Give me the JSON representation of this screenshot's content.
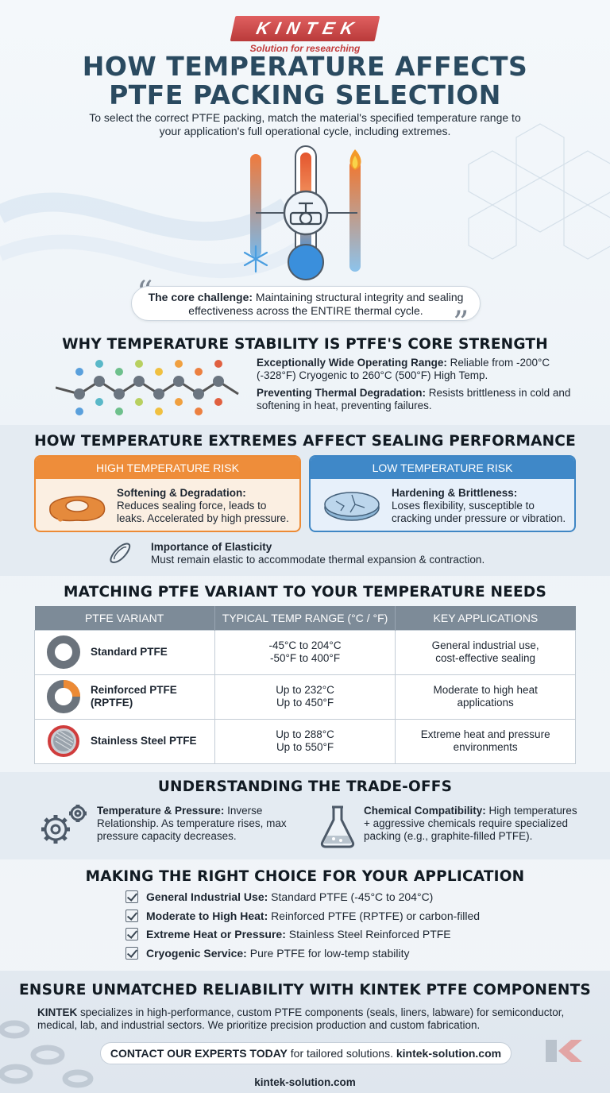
{
  "brand": {
    "logo": "KINTEK",
    "tagline": "Solution for researching"
  },
  "header": {
    "title_line1": "HOW TEMPERATURE AFFECTS",
    "title_line2": "PTFE PACKING SELECTION",
    "subtitle": "To select the correct PTFE packing, match the material's specified temperature range to your application's full operational cycle, including extremes."
  },
  "quote": {
    "label": "The core challenge:",
    "text": " Maintaining structural integrity and sealing effectiveness across the ENTIRE thermal cycle."
  },
  "stability": {
    "title": "WHY TEMPERATURE STABILITY IS PTFE'S CORE STRENGTH",
    "point1_label": "Exceptionally Wide Operating Range:",
    "point1_text": " Reliable from -200°C (-328°F) Cryogenic to 260°C (500°F) High Temp.",
    "point2_label": "Preventing Thermal Degradation:",
    "point2_text": " Resists brittleness in cold and softening in heat, preventing failures."
  },
  "extremes": {
    "title": "HOW TEMPERATURE EXTREMES AFFECT SEALING PERFORMANCE",
    "high": {
      "header": "HIGH TEMPERATURE RISK",
      "label": "Softening & Degradation:",
      "text": "Reduces sealing force, leads to leaks. Accelerated by high pressure."
    },
    "low": {
      "header": "LOW TEMPERATURE RISK",
      "label": "Hardening & Brittleness:",
      "text": "Loses flexibility, susceptible to cracking under pressure or vibration."
    },
    "elasticity_label": "Importance of Elasticity",
    "elasticity_text": "Must remain elastic to accommodate thermal expansion & contraction."
  },
  "variants": {
    "title": "MATCHING PTFE VARIANT TO YOUR TEMPERATURE NEEDS",
    "columns": [
      "PTFE VARIANT",
      "TYPICAL TEMP RANGE (°C / °F)",
      "KEY APPLICATIONS"
    ],
    "rows": [
      {
        "name": "Standard PTFE",
        "range_c": "-45°C to 204°C",
        "range_f": "-50°F to 400°F",
        "app1": "General industrial use,",
        "app2": "cost-effective sealing"
      },
      {
        "name": "Reinforced PTFE (RPTFE)",
        "range_c": "Up to 232°C",
        "range_f": "Up to 450°F",
        "app1": "Moderate to high heat",
        "app2": "applications"
      },
      {
        "name": "Stainless Steel PTFE",
        "range_c": "Up to 288°C",
        "range_f": "Up to 550°F",
        "app1": "Extreme heat and pressure",
        "app2": "environments"
      }
    ]
  },
  "tradeoffs": {
    "title": "UNDERSTANDING THE TRADE-OFFS",
    "left_label": "Temperature & Pressure:",
    "left_text": " Inverse Relationship. As temperature rises, max pressure capacity decreases.",
    "right_label": "Chemical Compatibility:",
    "right_text": " High temperatures + aggressive chemicals require specialized packing (e.g., graphite-filled PTFE)."
  },
  "choice": {
    "title": "MAKING THE RIGHT CHOICE FOR YOUR APPLICATION",
    "items": [
      {
        "label": "General Industrial Use:",
        "text": " Standard PTFE (-45°C to 204°C)"
      },
      {
        "label": "Moderate to High Heat:",
        "text": " Reinforced PTFE (RPTFE) or carbon-filled"
      },
      {
        "label": "Extreme Heat or Pressure:",
        "text": " Stainless Steel Reinforced PTFE"
      },
      {
        "label": "Cryogenic Service:",
        "text": " Pure PTFE for low-temp stability"
      }
    ]
  },
  "reliability": {
    "title": "ENSURE UNMATCHED RELIABILITY WITH KINTEK PTFE COMPONENTS",
    "brand_word": "KINTEK",
    "text": " specializes in high-performance, custom PTFE components (seals, liners, labware) for semiconductor, medical, lab, and industrial sectors. We prioritize precision production and custom fabrication.",
    "cta_bold": "CONTACT OUR EXPERTS TODAY",
    "cta_text": " for tailored solutions. ",
    "cta_url": "kintek-solution.com",
    "footer_url": "kintek-solution.com"
  },
  "colors": {
    "high_risk": "#ee8d3a",
    "low_risk": "#3f88c8",
    "title": "#2a4a60",
    "brand_red": "#c23b3b"
  }
}
